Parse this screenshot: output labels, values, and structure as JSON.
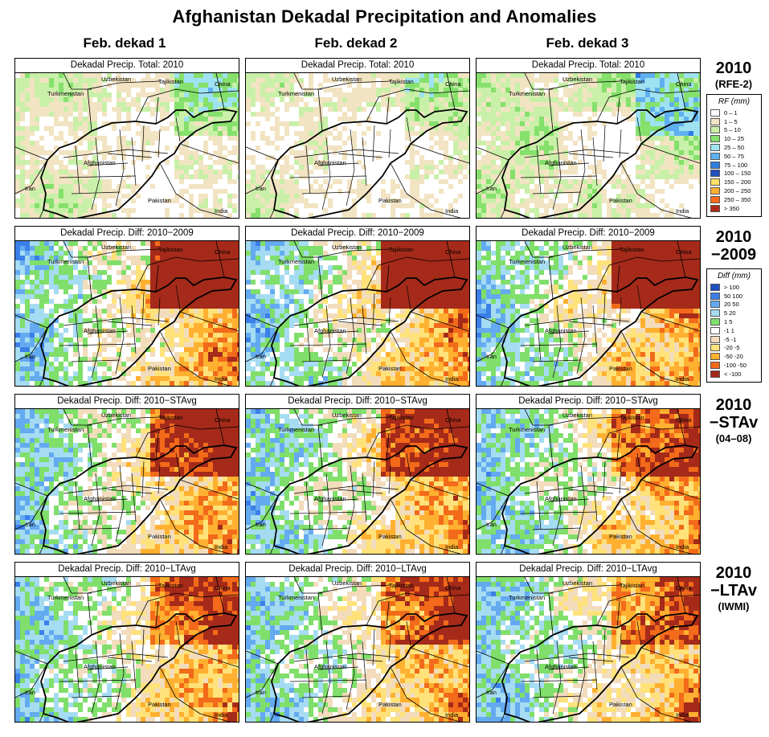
{
  "title": "Afghanistan Dekadal Precipitation and Anomalies",
  "columns": [
    "Feb. dekad 1",
    "Feb. dekad 2",
    "Feb. dekad 3"
  ],
  "rows": [
    {
      "key": "total",
      "label_big": "2010",
      "label_small": "(RFE-2)",
      "panel_title": "Dekadal Precip. Total: 2010",
      "scheme": "total",
      "intensity": [
        0.1,
        0.0,
        0.25
      ]
    },
    {
      "key": "diff2009",
      "label_big": "2010",
      "label_small": "−2009",
      "panel_title": "Dekadal Precip. Diff:  2010−2009",
      "scheme": "diff",
      "intensity": [
        0.5,
        0.6,
        0.45
      ]
    },
    {
      "key": "diffst",
      "label_big": "2010",
      "label_small": "−STAv",
      "label_note": "(04–08)",
      "panel_title": "Dekadal Precip. Diff:  2010−STAvg",
      "scheme": "diff",
      "intensity": [
        0.15,
        0.1,
        -0.1
      ]
    },
    {
      "key": "difflt",
      "label_big": "2010",
      "label_small": "−LTAv",
      "label_note": "(IWMI)",
      "panel_title": "Dekadal Precip. Diff:  2010−LTAvg",
      "scheme": "diff",
      "intensity": [
        -0.1,
        -0.05,
        -0.2
      ]
    }
  ],
  "places": {
    "uzbekistan": "Uzbekistan",
    "tajikistan": "Tajikistan",
    "china": "China",
    "turkmenistan": "Turkmenistan",
    "afghanistan": "Afghanistan",
    "iran": "Iran",
    "pakistan": "Pakistan",
    "india": "India"
  },
  "legend_rf": {
    "title": "RF (mm)",
    "items": [
      {
        "label": "0 – 1",
        "color": "#ffffff"
      },
      {
        "label": "1 – 5",
        "color": "#f2e4c2"
      },
      {
        "label": "5 – 10",
        "color": "#c9f0a8"
      },
      {
        "label": "10 – 25",
        "color": "#85e06c"
      },
      {
        "label": "25 – 50",
        "color": "#9fe3f2"
      },
      {
        "label": "50 – 75",
        "color": "#5fb0f0"
      },
      {
        "label": "75 – 100",
        "color": "#2f7de0"
      },
      {
        "label": "100 – 150",
        "color": "#1f4fc0"
      },
      {
        "label": "150 – 200",
        "color": "#ffe066"
      },
      {
        "label": "200 – 250",
        "color": "#ffb030"
      },
      {
        "label": "250 – 350",
        "color": "#ff6a1a"
      },
      {
        "label": "> 350",
        "color": "#b02a1a"
      }
    ]
  },
  "legend_diff": {
    "title": "Diff (mm)",
    "items": [
      {
        "label": "> 100",
        "color": "#1f4fc0"
      },
      {
        "label": "50  100",
        "color": "#3b7fe8"
      },
      {
        "label": "20  50",
        "color": "#64aaf0"
      },
      {
        "label": "5  20",
        "color": "#a5dcf2"
      },
      {
        "label": "1  5",
        "color": "#7fdf6a"
      },
      {
        "label": "-1  1",
        "color": "#ffffff"
      },
      {
        "label": "-5  -1",
        "color": "#f2dcbc"
      },
      {
        "label": "-20  -5",
        "color": "#ffe27a"
      },
      {
        "label": "-50  -20",
        "color": "#ffb030"
      },
      {
        "label": "-100  -50",
        "color": "#f26a1a"
      },
      {
        "label": "< -100",
        "color": "#a52a1a"
      }
    ]
  }
}
